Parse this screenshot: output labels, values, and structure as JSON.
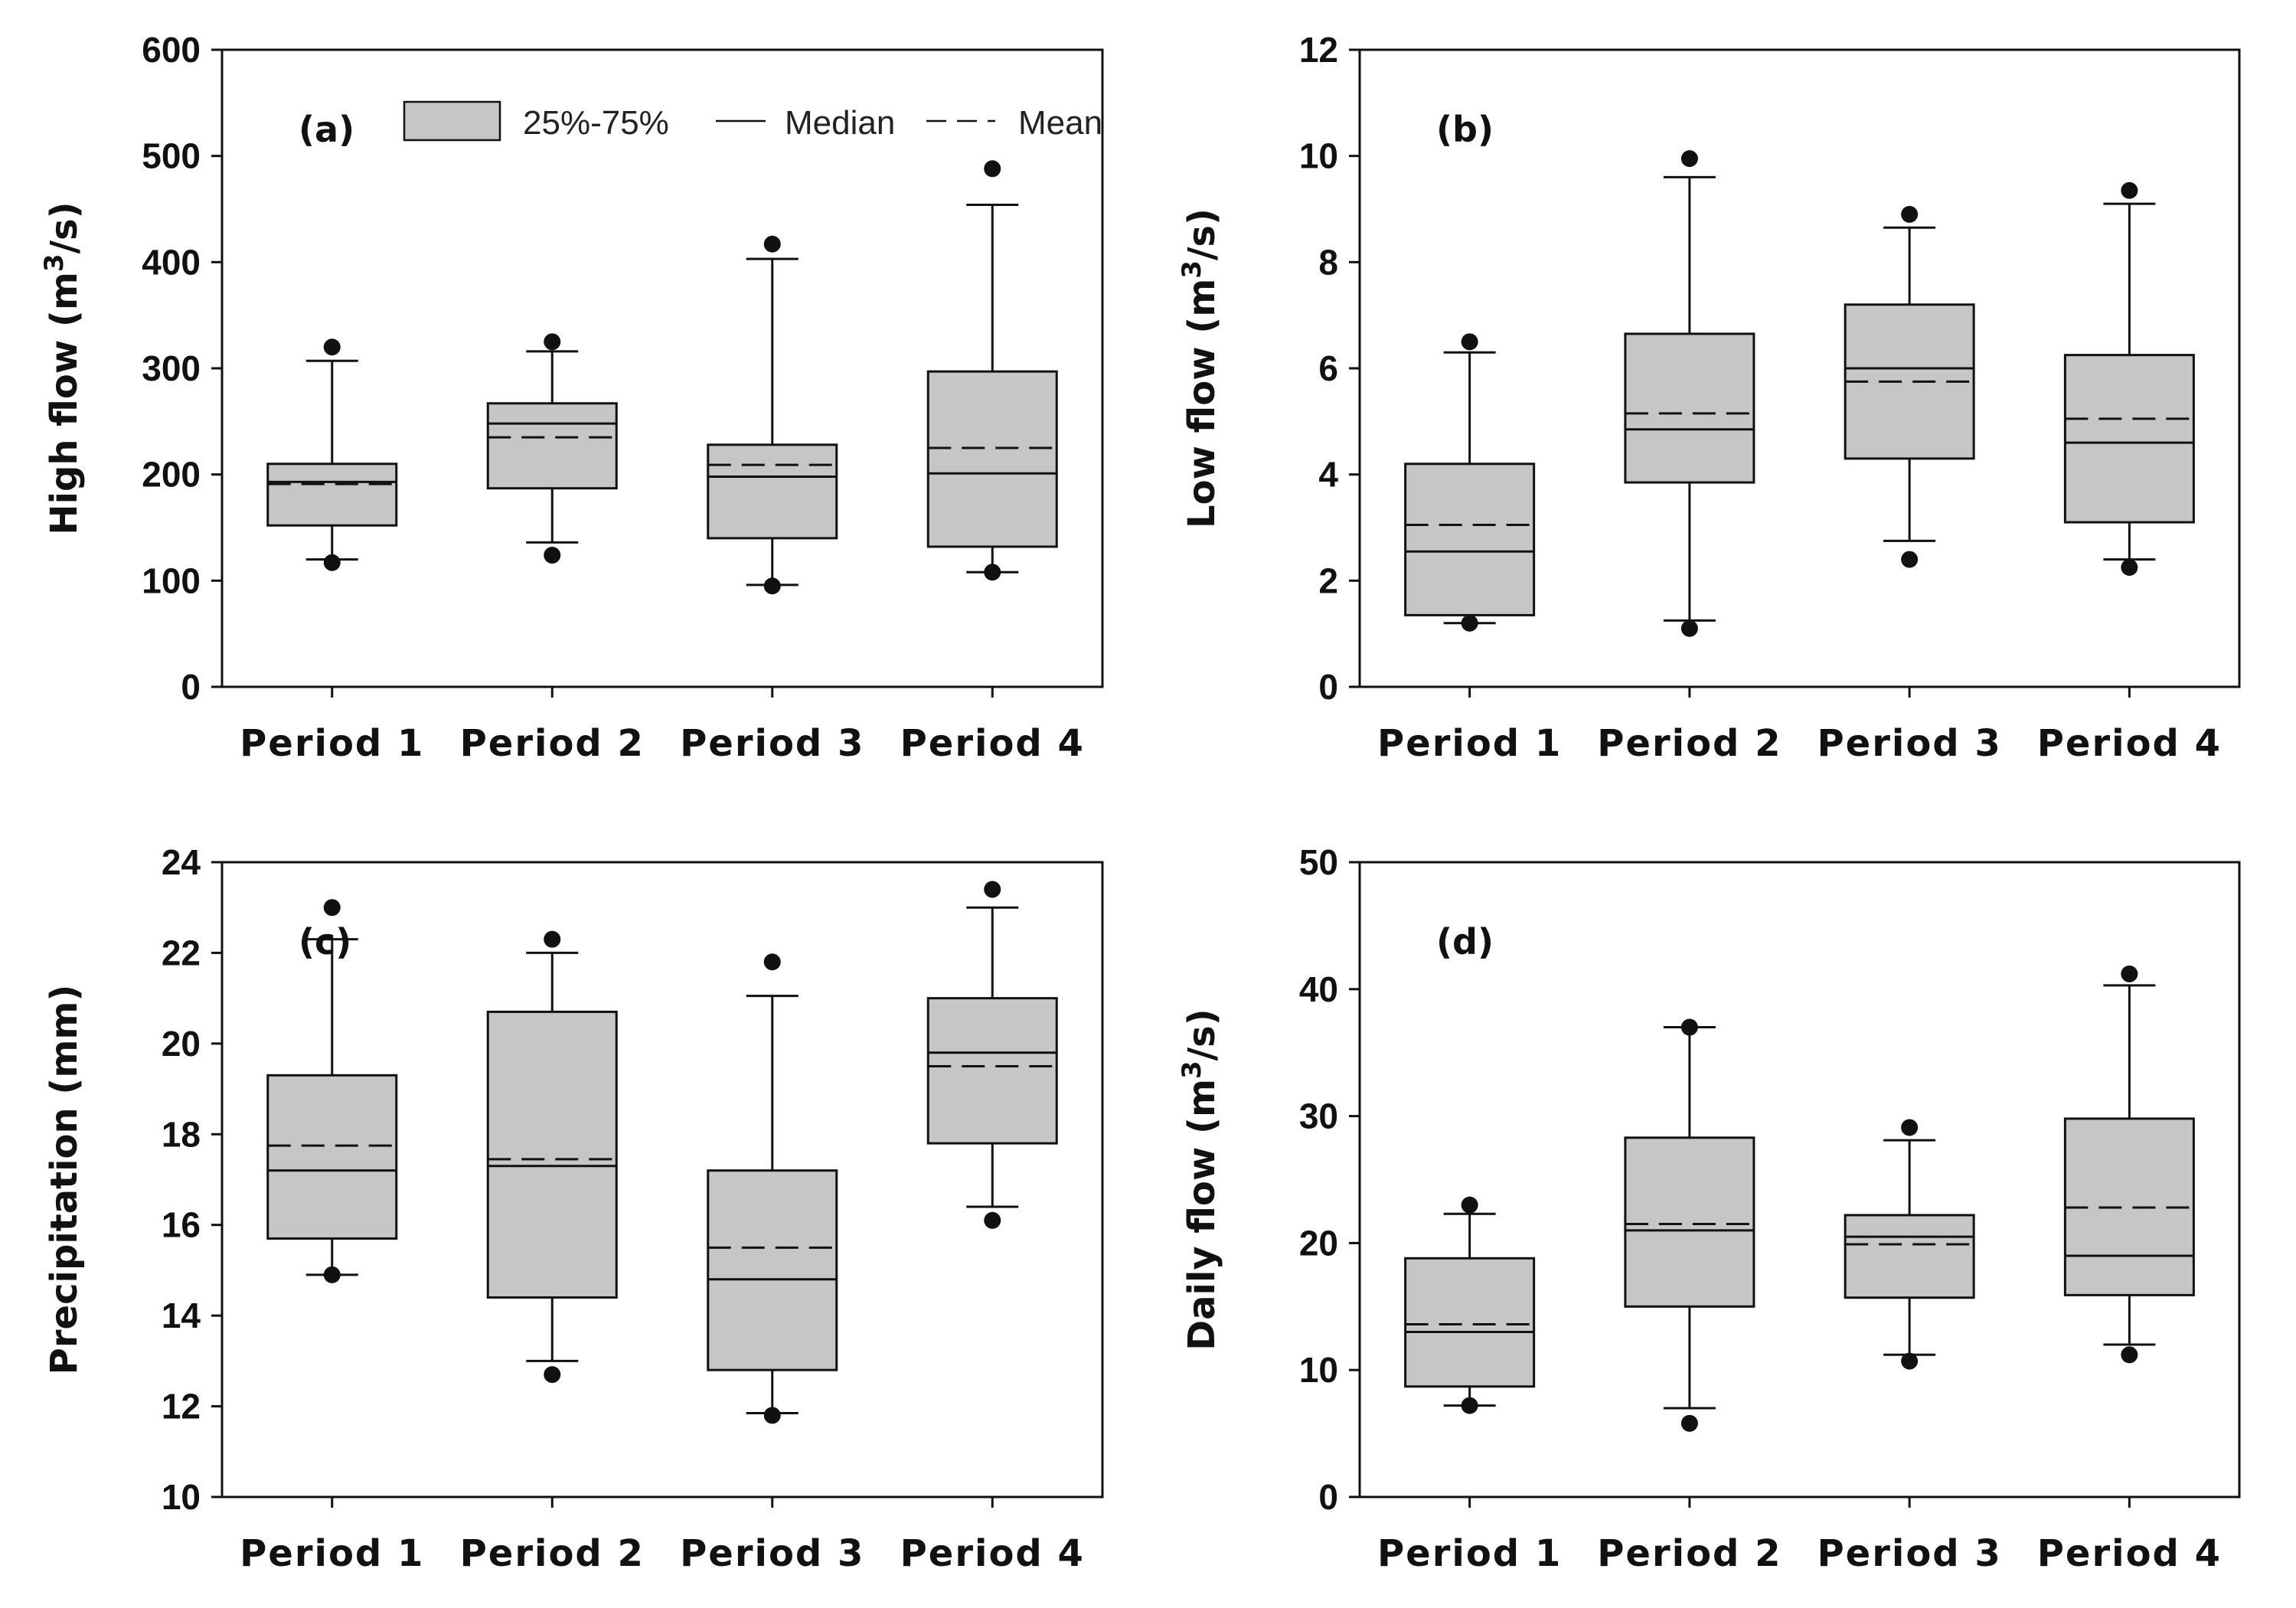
{
  "legend": {
    "box_label": "25%-75%",
    "median_label": "Median",
    "mean_label": "Mean"
  },
  "colors": {
    "box_fill": "#c6c6c6",
    "stroke": "#111111",
    "background": "#ffffff"
  },
  "chart_data": [
    {
      "type": "box",
      "panel_label": "(a)",
      "ylabel": "High flow (m3/s)",
      "ylabel_main": "High flow (m",
      "ylabel_sup": "3",
      "ylabel_end": "/s)",
      "ylim": [
        0,
        600
      ],
      "yticks": [
        0,
        100,
        200,
        300,
        400,
        500,
        600
      ],
      "categories": [
        "Period 1",
        "Period 2",
        "Period 3",
        "Period 4"
      ],
      "boxes": [
        {
          "q1": 152,
          "median": 193,
          "q3": 210,
          "mean": 191,
          "whisker_low": 120,
          "whisker_high": 307,
          "outliers": [
            117,
            320
          ]
        },
        {
          "q1": 187,
          "median": 248,
          "q3": 267,
          "mean": 235,
          "whisker_low": 136,
          "whisker_high": 316,
          "outliers": [
            124,
            325
          ]
        },
        {
          "q1": 140,
          "median": 198,
          "q3": 228,
          "mean": 209,
          "whisker_low": 96,
          "whisker_high": 403,
          "outliers": [
            95,
            417
          ]
        },
        {
          "q1": 132,
          "median": 201,
          "q3": 297,
          "mean": 225,
          "whisker_low": 108,
          "whisker_high": 454,
          "outliers": [
            108,
            488
          ]
        }
      ]
    },
    {
      "type": "box",
      "panel_label": "(b)",
      "ylabel": "Low flow (m3/s)",
      "ylabel_main": "Low flow (m",
      "ylabel_sup": "3",
      "ylabel_end": "/s)",
      "ylim": [
        0,
        12
      ],
      "yticks": [
        0,
        2,
        4,
        6,
        8,
        10,
        12
      ],
      "categories": [
        "Period 1",
        "Period 2",
        "Period 3",
        "Period 4"
      ],
      "boxes": [
        {
          "q1": 1.35,
          "median": 2.55,
          "q3": 4.2,
          "mean": 3.05,
          "whisker_low": 1.2,
          "whisker_high": 6.3,
          "outliers": [
            1.2,
            6.5
          ]
        },
        {
          "q1": 3.85,
          "median": 4.85,
          "q3": 6.65,
          "mean": 5.15,
          "whisker_low": 1.25,
          "whisker_high": 9.6,
          "outliers": [
            1.1,
            9.95
          ]
        },
        {
          "q1": 4.3,
          "median": 6.0,
          "q3": 7.2,
          "mean": 5.75,
          "whisker_low": 2.75,
          "whisker_high": 8.65,
          "outliers": [
            2.4,
            8.9
          ]
        },
        {
          "q1": 3.1,
          "median": 4.6,
          "q3": 6.25,
          "mean": 5.05,
          "whisker_low": 2.4,
          "whisker_high": 9.1,
          "outliers": [
            2.25,
            9.35
          ]
        }
      ]
    },
    {
      "type": "box",
      "panel_label": "(c)",
      "ylabel": "Precipitation (mm)",
      "ylabel_main": "Precipitation (mm)",
      "ylabel_sup": "",
      "ylabel_end": "",
      "ylim": [
        10,
        24
      ],
      "yticks": [
        10,
        12,
        14,
        16,
        18,
        20,
        22,
        24
      ],
      "categories": [
        "Period 1",
        "Period 2",
        "Period 3",
        "Period 4"
      ],
      "boxes": [
        {
          "q1": 15.7,
          "median": 17.2,
          "q3": 19.3,
          "mean": 17.75,
          "whisker_low": 14.9,
          "whisker_high": 22.3,
          "outliers": [
            14.9,
            23.0
          ]
        },
        {
          "q1": 14.4,
          "median": 17.3,
          "q3": 20.7,
          "mean": 17.45,
          "whisker_low": 13.0,
          "whisker_high": 22.0,
          "outliers": [
            12.7,
            22.3
          ]
        },
        {
          "q1": 12.8,
          "median": 14.8,
          "q3": 17.2,
          "mean": 15.5,
          "whisker_low": 11.85,
          "whisker_high": 21.05,
          "outliers": [
            11.8,
            21.8
          ]
        },
        {
          "q1": 17.8,
          "median": 19.8,
          "q3": 21.0,
          "mean": 19.5,
          "whisker_low": 16.4,
          "whisker_high": 23.0,
          "outliers": [
            16.1,
            23.4
          ]
        }
      ]
    },
    {
      "type": "box",
      "panel_label": "(d)",
      "ylabel": "Daily flow (m3/s)",
      "ylabel_main": "Daily flow (m",
      "ylabel_sup": "3",
      "ylabel_end": "/s)",
      "ylim": [
        0,
        50
      ],
      "yticks": [
        0,
        10,
        20,
        30,
        40,
        50
      ],
      "categories": [
        "Period 1",
        "Period 2",
        "Period 3",
        "Period 4"
      ],
      "boxes": [
        {
          "q1": 8.7,
          "median": 13.0,
          "q3": 18.8,
          "mean": 13.6,
          "whisker_low": 7.2,
          "whisker_high": 22.3,
          "outliers": [
            7.2,
            23.0
          ]
        },
        {
          "q1": 15.0,
          "median": 21.0,
          "q3": 28.3,
          "mean": 21.5,
          "whisker_low": 7.0,
          "whisker_high": 37.0,
          "outliers": [
            5.8,
            37.0
          ]
        },
        {
          "q1": 15.7,
          "median": 20.5,
          "q3": 22.2,
          "mean": 19.9,
          "whisker_low": 11.2,
          "whisker_high": 28.1,
          "outliers": [
            10.7,
            29.1
          ]
        },
        {
          "q1": 15.9,
          "median": 19.0,
          "q3": 29.8,
          "mean": 22.8,
          "whisker_low": 12.0,
          "whisker_high": 40.3,
          "outliers": [
            11.2,
            41.2
          ]
        }
      ]
    }
  ]
}
